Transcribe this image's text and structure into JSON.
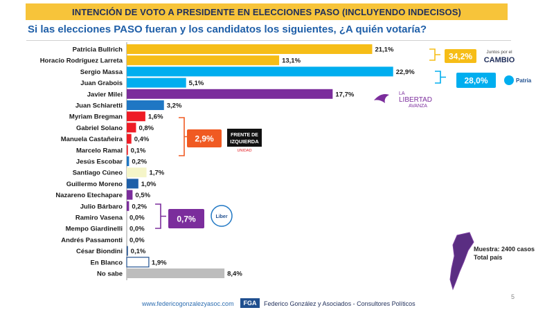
{
  "header": {
    "title": "INTENCIÓN DE VOTO A PRESIDENTE EN ELECCIONES PASO (INCLUYENDO INDECISOS)",
    "question": "Si las elecciones PASO fueran y los candidatos los siguientes, ¿A quién votaría?"
  },
  "chart_data": {
    "type": "bar",
    "orientation": "horizontal",
    "categories": [
      "Patricia Bullrich",
      "Horacio Rodríguez Larreta",
      "Sergio Massa",
      "Juan Grabois",
      "Javier Milei",
      "Juan Schiaretti",
      "Myriam Bregman",
      "Gabriel Solano",
      "Manuela Castañeira",
      "Marcelo Ramal",
      "Jesús Escobar",
      "Santiago Cúneo",
      "Guillermo Moreno",
      "Nazareno Etechapare",
      "Julio Bárbaro",
      "Ramiro Vasena",
      "Mempo Giardinelli",
      "Andrés Passamonti",
      "César Biondini",
      "En Blanco",
      "No sabe"
    ],
    "values": [
      21.1,
      13.1,
      22.9,
      5.1,
      17.7,
      3.2,
      1.6,
      0.8,
      0.4,
      0.1,
      0.2,
      1.7,
      1.0,
      0.5,
      0.2,
      0.0,
      0.0,
      0.0,
      0.1,
      1.9,
      8.4
    ],
    "value_labels": [
      "21,1%",
      "13,1%",
      "22,9%",
      "5,1%",
      "17,7%",
      "3,2%",
      "1,6%",
      "0,8%",
      "0,4%",
      "0,1%",
      "0,2%",
      "1,7%",
      "1,0%",
      "0,5%",
      "0,2%",
      "0,0%",
      "0,0%",
      "0,0%",
      "0,1%",
      "1,9%",
      "8,4%"
    ],
    "colors": [
      "#f6bd17",
      "#f6bd17",
      "#00aeef",
      "#00aeef",
      "#7b2d9c",
      "#1f77c4",
      "#ee1c25",
      "#ee1c25",
      "#ee1c25",
      "#ee1c25",
      "#1f77c4",
      "#f5f5c8",
      "#1f5fa8",
      "#7b2d9c",
      "#7b2d9c",
      "#7b2d9c",
      "#1f4f8f",
      "#1f4f8f",
      "#1f4f8f",
      "#ffffff",
      "#bdbdbd"
    ],
    "groups": [
      {
        "label": "34,2%",
        "coalition": "Juntos por el CAMBIO",
        "logo_top": "Juntos por el",
        "logo_bottom": "CAMBIO",
        "color": "#f6bd17",
        "rows": [
          0,
          1
        ]
      },
      {
        "label": "28,0%",
        "coalition": "Unión por la Patria",
        "logo_text": "Patria",
        "color": "#00aeef",
        "rows": [
          2,
          3
        ]
      },
      {
        "label": "2,9%",
        "coalition": "Frente de Izquierda",
        "logo_line1": "FRENTE DE",
        "logo_line2": "IZQUIERDA",
        "logo_sub": "UNIDAD",
        "color": "#f05a22",
        "rows": [
          6,
          9
        ]
      },
      {
        "label": "0,7%",
        "coalition": "Libres del Sur",
        "logo_text": "Liber",
        "color": "#7b2d9c",
        "rows": [
          13,
          15
        ]
      }
    ],
    "milei_logo": {
      "line1": "LA",
      "line2": "LIBERTAD",
      "line3": "AVANZA"
    },
    "xlim": [
      0,
      25
    ]
  },
  "sample": {
    "line1": "Muestra: 2400 casos",
    "line2": "Total país"
  },
  "footer": {
    "website": "www.federicogonzalezyasoc.com",
    "logo": "FGA",
    "firm": "Federico González y Asociados - Consultores Políticos"
  },
  "page_number": "5"
}
